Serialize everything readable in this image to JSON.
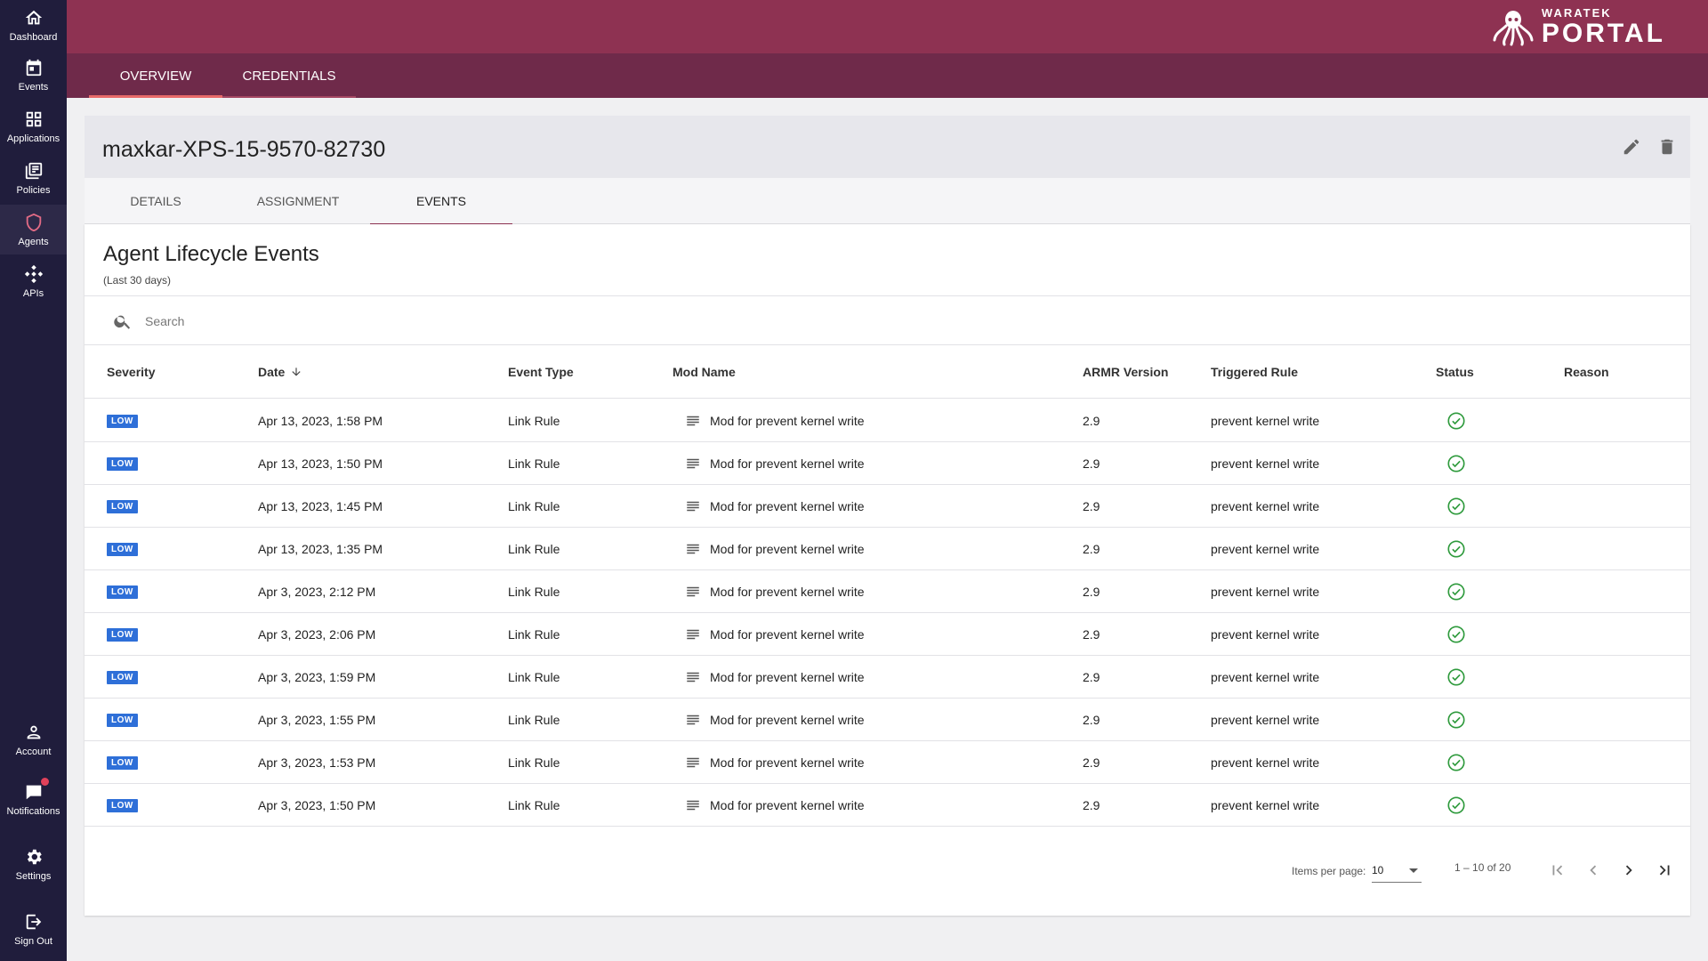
{
  "sidebar": {
    "items": [
      {
        "label": "Dashboard",
        "icon": "home-icon"
      },
      {
        "label": "Events",
        "icon": "calendar-icon"
      },
      {
        "label": "Applications",
        "icon": "grid-icon"
      },
      {
        "label": "Policies",
        "icon": "policies-icon"
      },
      {
        "label": "Agents",
        "icon": "shield-icon",
        "active": true
      },
      {
        "label": "APIs",
        "icon": "api-icon"
      }
    ],
    "bottom_items": [
      {
        "label": "Account",
        "icon": "person-icon"
      },
      {
        "label": "Notifications",
        "icon": "chat-icon"
      },
      {
        "label": "Settings",
        "icon": "gear-icon"
      },
      {
        "label": "Sign Out",
        "icon": "logout-icon"
      }
    ]
  },
  "brand": {
    "small": "WARATEK",
    "big": "PORTAL"
  },
  "topnav": {
    "tabs": [
      "OVERVIEW",
      "CREDENTIALS"
    ],
    "active": "OVERVIEW"
  },
  "agent": {
    "name": "maxkar-XPS-15-9570-82730"
  },
  "subtabs": {
    "items": [
      "DETAILS",
      "ASSIGNMENT",
      "EVENTS"
    ],
    "active": "EVENTS"
  },
  "events": {
    "title": "Agent Lifecycle Events",
    "subtitle": "(Last 30 days)",
    "search_placeholder": "Search",
    "columns": [
      "Severity",
      "Date",
      "Event Type",
      "Mod Name",
      "ARMR Version",
      "Triggered Rule",
      "Status",
      "Reason"
    ],
    "rows": [
      {
        "severity": "LOW",
        "date": "Apr 13, 2023, 1:58 PM",
        "event_type": "Link Rule",
        "mod_name": "Mod for prevent kernel write",
        "armr_version": "2.9",
        "triggered_rule": "prevent kernel write",
        "status": "success",
        "reason": ""
      },
      {
        "severity": "LOW",
        "date": "Apr 13, 2023, 1:50 PM",
        "event_type": "Link Rule",
        "mod_name": "Mod for prevent kernel write",
        "armr_version": "2.9",
        "triggered_rule": "prevent kernel write",
        "status": "success",
        "reason": ""
      },
      {
        "severity": "LOW",
        "date": "Apr 13, 2023, 1:45 PM",
        "event_type": "Link Rule",
        "mod_name": "Mod for prevent kernel write",
        "armr_version": "2.9",
        "triggered_rule": "prevent kernel write",
        "status": "success",
        "reason": ""
      },
      {
        "severity": "LOW",
        "date": "Apr 13, 2023, 1:35 PM",
        "event_type": "Link Rule",
        "mod_name": "Mod for prevent kernel write",
        "armr_version": "2.9",
        "triggered_rule": "prevent kernel write",
        "status": "success",
        "reason": ""
      },
      {
        "severity": "LOW",
        "date": "Apr 3, 2023, 2:12 PM",
        "event_type": "Link Rule",
        "mod_name": "Mod for prevent kernel write",
        "armr_version": "2.9",
        "triggered_rule": "prevent kernel write",
        "status": "success",
        "reason": ""
      },
      {
        "severity": "LOW",
        "date": "Apr 3, 2023, 2:06 PM",
        "event_type": "Link Rule",
        "mod_name": "Mod for prevent kernel write",
        "armr_version": "2.9",
        "triggered_rule": "prevent kernel write",
        "status": "success",
        "reason": ""
      },
      {
        "severity": "LOW",
        "date": "Apr 3, 2023, 1:59 PM",
        "event_type": "Link Rule",
        "mod_name": "Mod for prevent kernel write",
        "armr_version": "2.9",
        "triggered_rule": "prevent kernel write",
        "status": "success",
        "reason": ""
      },
      {
        "severity": "LOW",
        "date": "Apr 3, 2023, 1:55 PM",
        "event_type": "Link Rule",
        "mod_name": "Mod for prevent kernel write",
        "armr_version": "2.9",
        "triggered_rule": "prevent kernel write",
        "status": "success",
        "reason": ""
      },
      {
        "severity": "LOW",
        "date": "Apr 3, 2023, 1:53 PM",
        "event_type": "Link Rule",
        "mod_name": "Mod for prevent kernel write",
        "armr_version": "2.9",
        "triggered_rule": "prevent kernel write",
        "status": "success",
        "reason": ""
      },
      {
        "severity": "LOW",
        "date": "Apr 3, 2023, 1:50 PM",
        "event_type": "Link Rule",
        "mod_name": "Mod for prevent kernel write",
        "armr_version": "2.9",
        "triggered_rule": "prevent kernel write",
        "status": "success",
        "reason": ""
      }
    ]
  },
  "paginator": {
    "items_per_page_label": "Items per page:",
    "items_per_page": "10",
    "range": "1 – 10 of 20"
  },
  "colors": {
    "header": "#8e3252",
    "topnav": "#6f2a4a",
    "sidebar": "#201d3c",
    "badge": "#2e6fd8",
    "status_ok": "#2e9a3c",
    "accent": "#e76a6a"
  }
}
